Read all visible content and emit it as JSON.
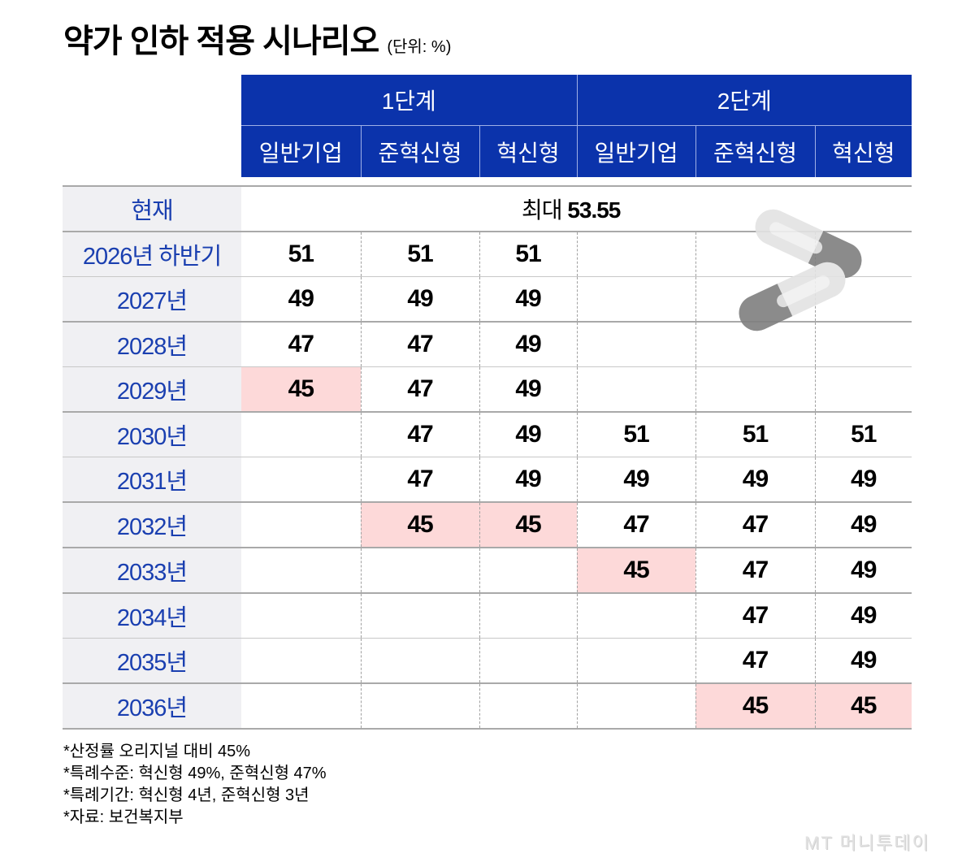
{
  "title": "약가 인하 적용 시나리오",
  "unit": "(단위: %)",
  "header": {
    "phases": [
      "1단계",
      "2단계"
    ],
    "columns": [
      "일반기업",
      "준혁신형",
      "혁신형",
      "일반기업",
      "준혁신형",
      "혁신형"
    ]
  },
  "current": {
    "label": "현재",
    "prefix": "최대",
    "value": "53.55"
  },
  "rows": [
    {
      "label": "2026년 하반기",
      "values": [
        "51",
        "51",
        "51",
        "",
        "",
        ""
      ]
    },
    {
      "label": "2027년",
      "values": [
        "49",
        "49",
        "49",
        "",
        "",
        ""
      ]
    },
    {
      "label": "2028년",
      "values": [
        "47",
        "47",
        "49",
        "",
        "",
        ""
      ]
    },
    {
      "label": "2029년",
      "values": [
        "45",
        "47",
        "49",
        "",
        "",
        ""
      ]
    },
    {
      "label": "2030년",
      "values": [
        "",
        "47",
        "49",
        "51",
        "51",
        "51"
      ]
    },
    {
      "label": "2031년",
      "values": [
        "",
        "47",
        "49",
        "49",
        "49",
        "49"
      ]
    },
    {
      "label": "2032년",
      "values": [
        "",
        "45",
        "45",
        "47",
        "47",
        "49"
      ]
    },
    {
      "label": "2033년",
      "values": [
        "",
        "",
        "",
        "45",
        "47",
        "49"
      ]
    },
    {
      "label": "2034년",
      "values": [
        "",
        "",
        "",
        "",
        "47",
        "49"
      ]
    },
    {
      "label": "2035년",
      "values": [
        "",
        "",
        "",
        "",
        "47",
        "49"
      ]
    },
    {
      "label": "2036년",
      "values": [
        "",
        "",
        "",
        "",
        "45",
        "45"
      ]
    }
  ],
  "notes": [
    "*산정률 오리지널 대비 45%",
    "*특례수준: 혁신형 49%, 준혁신형 47%",
    "*특례기간: 혁신형 4년, 준혁신형 3년",
    "*자료: 보건복지부"
  ],
  "watermark": "MT 머니투데이",
  "colors": {
    "header_bg": "#0b33ab",
    "label_text": "#1a3fb0",
    "label_bg": "#f0f0f3",
    "highlight": "#fdd9d9"
  },
  "chart_data": {
    "type": "table",
    "title": "약가 인하 적용 시나리오",
    "unit": "%",
    "column_groups": [
      {
        "name": "1단계",
        "columns": [
          "일반기업",
          "준혁신형",
          "혁신형"
        ]
      },
      {
        "name": "2단계",
        "columns": [
          "일반기업",
          "준혁신형",
          "혁신형"
        ]
      }
    ],
    "current": {
      "label": "현재",
      "text": "최대 53.55",
      "value": 53.55
    },
    "row_labels": [
      "2026년 하반기",
      "2027년",
      "2028년",
      "2029년",
      "2030년",
      "2031년",
      "2032년",
      "2033년",
      "2034년",
      "2035년",
      "2036년"
    ],
    "series": [
      {
        "name": "1단계 일반기업",
        "values": [
          51,
          49,
          47,
          45,
          null,
          null,
          null,
          null,
          null,
          null,
          null
        ]
      },
      {
        "name": "1단계 준혁신형",
        "values": [
          51,
          49,
          47,
          47,
          47,
          47,
          45,
          null,
          null,
          null,
          null
        ]
      },
      {
        "name": "1단계 혁신형",
        "values": [
          51,
          49,
          49,
          49,
          49,
          49,
          45,
          null,
          null,
          null,
          null
        ]
      },
      {
        "name": "2단계 일반기업",
        "values": [
          null,
          null,
          null,
          null,
          51,
          49,
          47,
          45,
          null,
          null,
          null
        ]
      },
      {
        "name": "2단계 준혁신형",
        "values": [
          null,
          null,
          null,
          null,
          51,
          49,
          47,
          47,
          47,
          47,
          45
        ]
      },
      {
        "name": "2단계 혁신형",
        "values": [
          null,
          null,
          null,
          null,
          51,
          49,
          49,
          49,
          49,
          49,
          45
        ]
      }
    ],
    "highlighted_cells": [
      {
        "row": "2029년",
        "col": "1단계 일반기업",
        "value": 45
      },
      {
        "row": "2032년",
        "col": "1단계 준혁신형",
        "value": 45
      },
      {
        "row": "2032년",
        "col": "1단계 혁신형",
        "value": 45
      },
      {
        "row": "2033년",
        "col": "2단계 일반기업",
        "value": 45
      },
      {
        "row": "2036년",
        "col": "2단계 준혁신형",
        "value": 45
      },
      {
        "row": "2036년",
        "col": "2단계 혁신형",
        "value": 45
      }
    ]
  }
}
